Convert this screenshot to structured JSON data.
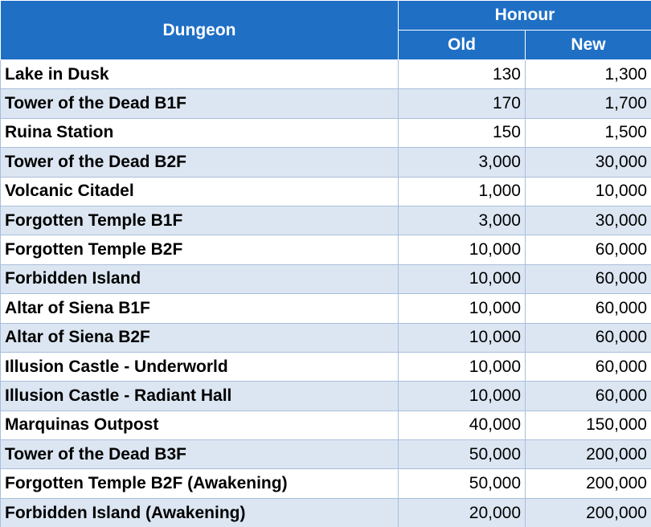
{
  "table": {
    "header": {
      "dungeon": "Dungeon",
      "honour": "Honour",
      "old": "Old",
      "new": "New"
    },
    "rows": [
      [
        "Lake in Dusk",
        "130",
        "1,300"
      ],
      [
        "Tower of the Dead B1F",
        "170",
        "1,700"
      ],
      [
        "Ruina Station",
        "150",
        "1,500"
      ],
      [
        "Tower of the Dead B2F",
        "3,000",
        "30,000"
      ],
      [
        "Volcanic Citadel",
        "1,000",
        "10,000"
      ],
      [
        "Forgotten Temple B1F",
        "3,000",
        "30,000"
      ],
      [
        "Forgotten Temple B2F",
        "10,000",
        "60,000"
      ],
      [
        "Forbidden Island",
        "10,000",
        "60,000"
      ],
      [
        "Altar of Siena B1F",
        "10,000",
        "60,000"
      ],
      [
        "Altar of Siena B2F",
        "10,000",
        "60,000"
      ],
      [
        "Illusion Castle - Underworld",
        "10,000",
        "60,000"
      ],
      [
        "Illusion Castle - Radiant Hall",
        "10,000",
        "60,000"
      ],
      [
        "Marquinas Outpost",
        "40,000",
        "150,000"
      ],
      [
        "Tower of the Dead B3F",
        "50,000",
        "200,000"
      ],
      [
        "Forgotten Temple B2F (Awakening)",
        "50,000",
        "200,000"
      ],
      [
        "Forbidden Island (Awakening)",
        "20,000",
        "200,000"
      ]
    ]
  }
}
